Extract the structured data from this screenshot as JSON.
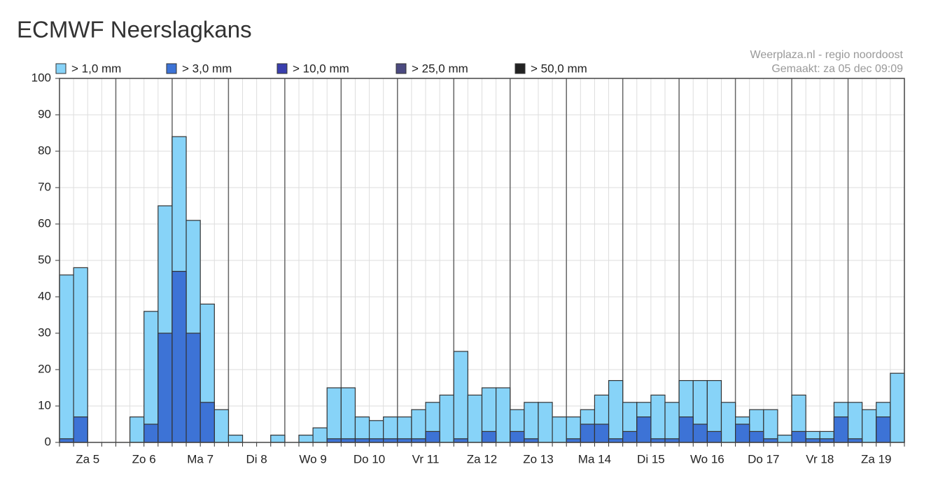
{
  "chart_data": {
    "type": "bar",
    "barmode": "overlay",
    "title": "ECMWF Neerslagkans",
    "annotations": [
      "Weerplaza.nl - regio noordoost",
      "Gemaakt: za 05 dec 09:09"
    ],
    "categories": [
      null,
      null,
      "Za 5",
      null,
      null,
      null,
      "Zo 6",
      null,
      null,
      null,
      "Ma 7",
      null,
      null,
      null,
      "Di 8",
      null,
      null,
      null,
      "Wo 9",
      null,
      null,
      null,
      "Do 10",
      null,
      null,
      null,
      "Vr 11",
      null,
      null,
      null,
      "Za 12",
      null,
      null,
      null,
      "Zo 13",
      null,
      null,
      null,
      "Ma 14",
      null,
      null,
      null,
      "Di 15",
      null,
      null,
      null,
      "Wo 16",
      null,
      null,
      null,
      "Do 17",
      null,
      null,
      null,
      "Vr 18",
      null,
      null,
      null,
      "Za 19",
      null
    ],
    "series": [
      {
        "name": "> 1,0 mm",
        "color": "#87d3f8",
        "values": [
          46,
          48,
          0,
          0,
          0,
          7,
          36,
          65,
          84,
          61,
          38,
          9,
          2,
          0,
          0,
          2,
          0,
          2,
          4,
          15,
          15,
          7,
          6,
          7,
          7,
          9,
          11,
          13,
          25,
          13,
          15,
          15,
          9,
          11,
          11,
          7,
          7,
          9,
          13,
          17,
          11,
          11,
          13,
          11,
          17,
          17,
          17,
          11,
          7,
          9,
          9,
          2,
          13,
          3,
          3,
          11,
          11,
          9,
          11,
          19
        ]
      },
      {
        "name": "> 3,0 mm",
        "color": "#3d73d6",
        "values": [
          1,
          7,
          0,
          0,
          0,
          0,
          5,
          30,
          47,
          30,
          11,
          0,
          0,
          0,
          0,
          0,
          0,
          0,
          0,
          1,
          1,
          1,
          1,
          1,
          1,
          1,
          3,
          0,
          1,
          0,
          3,
          0,
          3,
          1,
          0,
          0,
          1,
          5,
          5,
          1,
          3,
          7,
          1,
          1,
          7,
          5,
          3,
          0,
          5,
          3,
          1,
          0,
          3,
          1,
          1,
          7,
          1,
          0,
          7,
          0
        ]
      },
      {
        "name": "> 10,0 mm",
        "color": "#3a3fae",
        "values": [
          0,
          0,
          0,
          0,
          0,
          0,
          0,
          0,
          0,
          0,
          0,
          0,
          0,
          0,
          0,
          0,
          0,
          0,
          0,
          0,
          0,
          0,
          0,
          0,
          0,
          0,
          0,
          0,
          0,
          0,
          0,
          0,
          0,
          0,
          0,
          0,
          0,
          0,
          0,
          0,
          0,
          0,
          0,
          0,
          0,
          0,
          0,
          0,
          0,
          0,
          0,
          0,
          0,
          0,
          0,
          0,
          0,
          0,
          0,
          0
        ]
      },
      {
        "name": "> 25,0 mm",
        "color": "#4b4a80",
        "values": [
          0,
          0,
          0,
          0,
          0,
          0,
          0,
          0,
          0,
          0,
          0,
          0,
          0,
          0,
          0,
          0,
          0,
          0,
          0,
          0,
          0,
          0,
          0,
          0,
          0,
          0,
          0,
          0,
          0,
          0,
          0,
          0,
          0,
          0,
          0,
          0,
          0,
          0,
          0,
          0,
          0,
          0,
          0,
          0,
          0,
          0,
          0,
          0,
          0,
          0,
          0,
          0,
          0,
          0,
          0,
          0,
          0,
          0,
          0,
          0
        ]
      },
      {
        "name": "> 50,0 mm",
        "color": "#222222",
        "values": [
          0,
          0,
          0,
          0,
          0,
          0,
          0,
          0,
          0,
          0,
          0,
          0,
          0,
          0,
          0,
          0,
          0,
          0,
          0,
          0,
          0,
          0,
          0,
          0,
          0,
          0,
          0,
          0,
          0,
          0,
          0,
          0,
          0,
          0,
          0,
          0,
          0,
          0,
          0,
          0,
          0,
          0,
          0,
          0,
          0,
          0,
          0,
          0,
          0,
          0,
          0,
          0,
          0,
          0,
          0,
          0,
          0,
          0,
          0,
          0
        ]
      }
    ],
    "ylim": [
      0,
      100
    ],
    "yticks": [
      0,
      10,
      20,
      30,
      40,
      50,
      60,
      70,
      80,
      90,
      100
    ],
    "grid": true
  }
}
